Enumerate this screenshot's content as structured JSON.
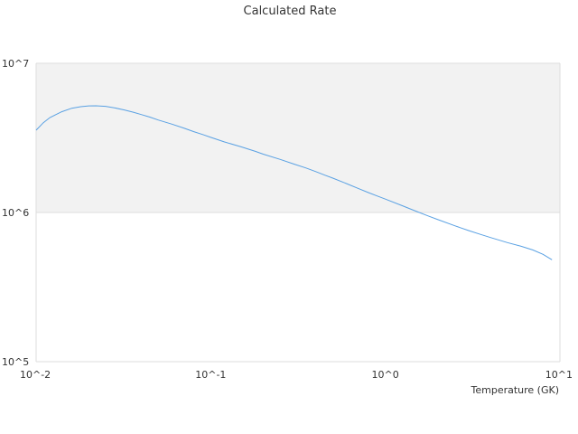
{
  "chart_data": {
    "type": "line",
    "title": "Calculated Rate",
    "xlabel": "Temperature (GK)",
    "ylabel": "",
    "x_scale": "log",
    "y_scale": "log",
    "xlim": [
      0.01,
      10
    ],
    "ylim": [
      100000,
      10000000
    ],
    "x_ticks": [
      {
        "value": 0.01,
        "label": "10^-2"
      },
      {
        "value": 0.1,
        "label": "10^-1"
      },
      {
        "value": 1,
        "label": "10^0"
      },
      {
        "value": 10,
        "label": "10^1"
      }
    ],
    "y_ticks": [
      {
        "value": 100000,
        "label": "10^5"
      },
      {
        "value": 1000000,
        "label": "10^6"
      },
      {
        "value": 10000000,
        "label": "10^7"
      }
    ],
    "shaded_band": {
      "from": 1000000,
      "to": 10000000,
      "color": "#f2f2f2"
    },
    "series": [
      {
        "name": "",
        "color": "#5aa1e3",
        "x": [
          0.01,
          0.011,
          0.012,
          0.014,
          0.016,
          0.018,
          0.02,
          0.022,
          0.025,
          0.028,
          0.032,
          0.036,
          0.04,
          0.045,
          0.05,
          0.06,
          0.07,
          0.08,
          0.09,
          0.1,
          0.12,
          0.15,
          0.18,
          0.2,
          0.25,
          0.3,
          0.35,
          0.4,
          0.45,
          0.5,
          0.6,
          0.7,
          0.8,
          0.9,
          1.0,
          1.25,
          1.5,
          1.75,
          2.0,
          2.5,
          3.0,
          3.5,
          4.0,
          5.0,
          6.0,
          7.0,
          8.0,
          9.0
        ],
        "y": [
          3560000,
          4000000,
          4330000,
          4730000,
          5000000,
          5120000,
          5180000,
          5190000,
          5150000,
          5030000,
          4870000,
          4700000,
          4530000,
          4350000,
          4170000,
          3910000,
          3680000,
          3480000,
          3330000,
          3190000,
          2970000,
          2750000,
          2570000,
          2460000,
          2270000,
          2110000,
          1990000,
          1880000,
          1780000,
          1700000,
          1560000,
          1450000,
          1360000,
          1290000,
          1230000,
          1110000,
          1020000,
          950000,
          896000,
          815000,
          756000,
          713000,
          679000,
          628000,
          593000,
          560000,
          524000,
          482000
        ]
      }
    ]
  }
}
